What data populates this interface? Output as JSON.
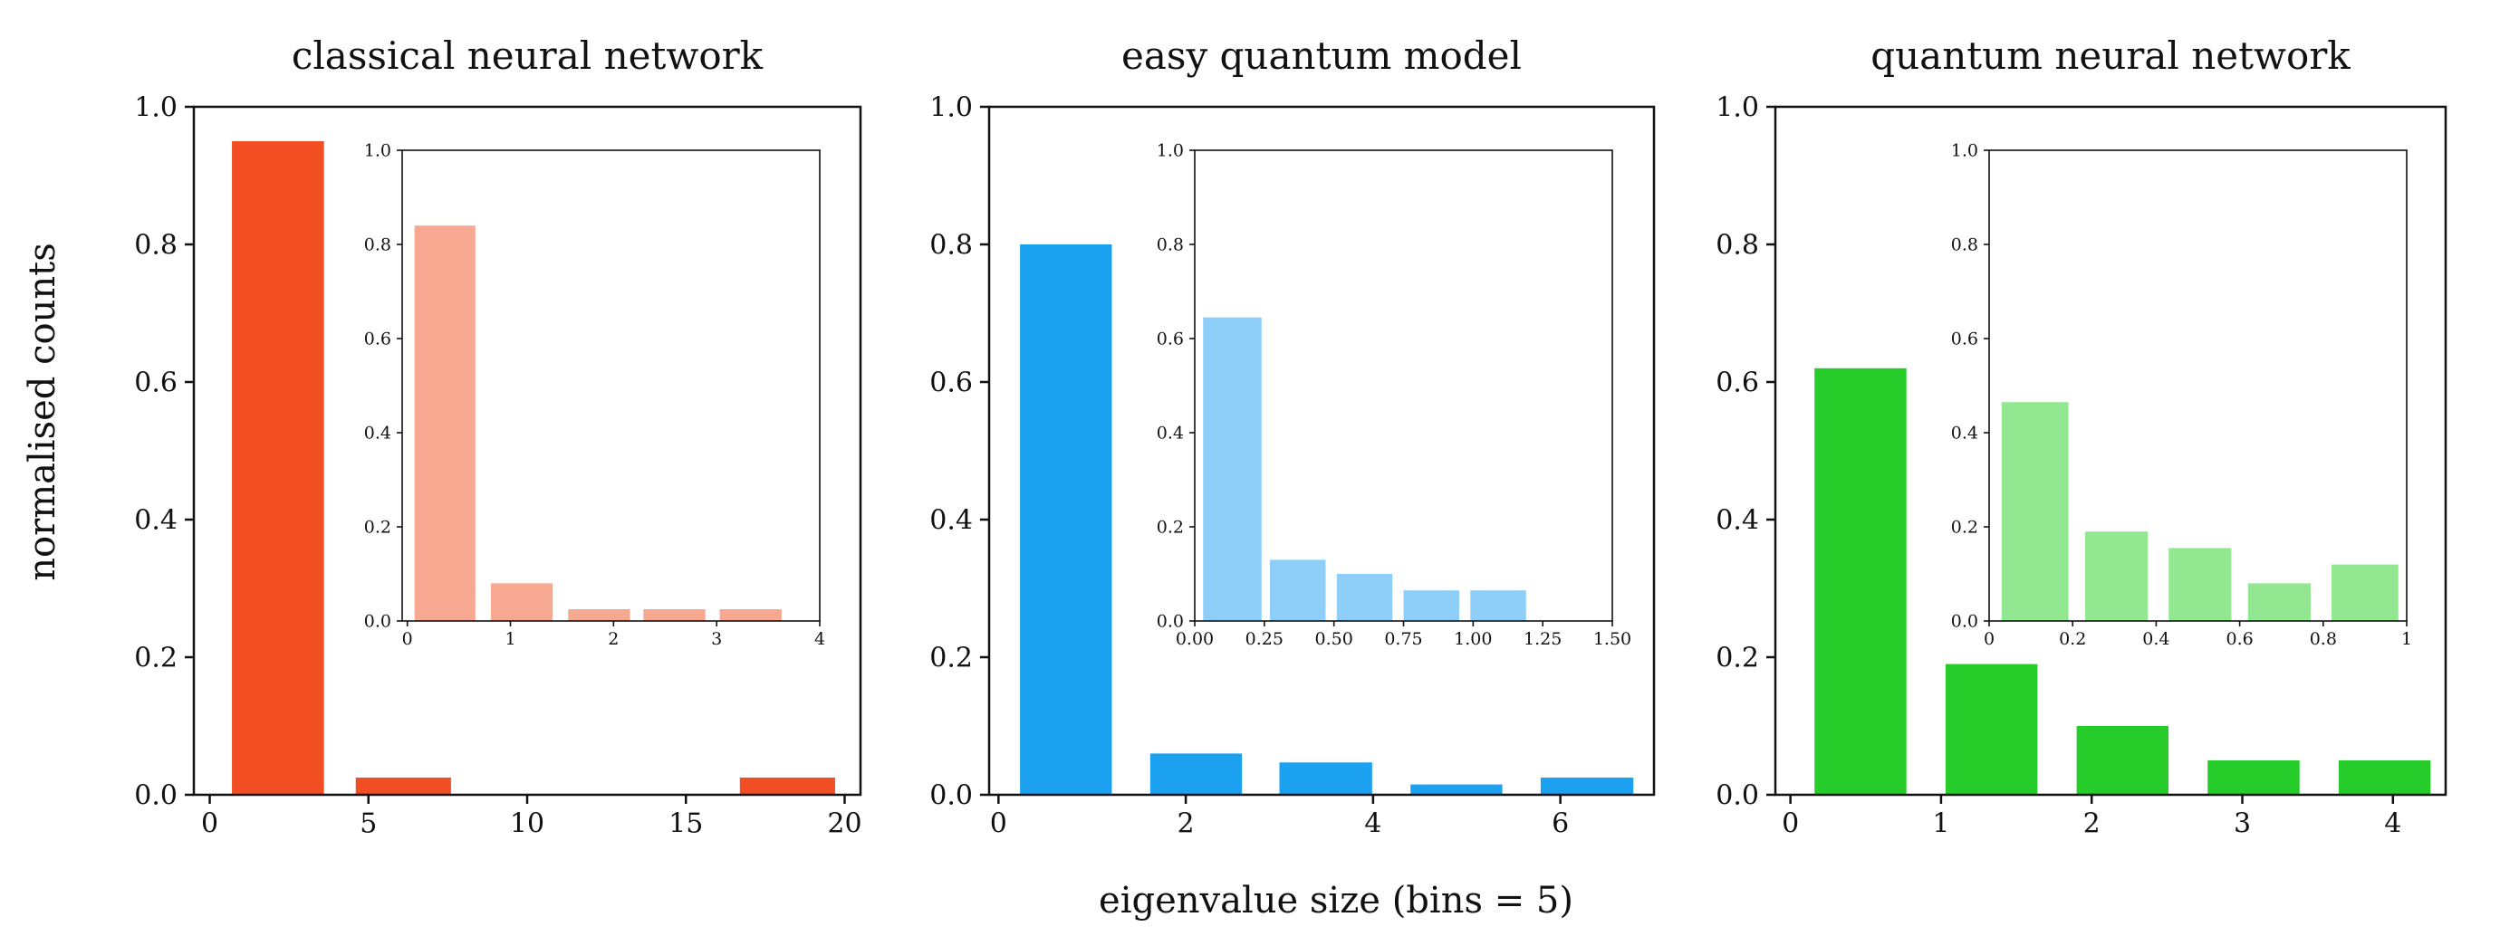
{
  "figure": {
    "ylabel": "normalised counts",
    "xlabel": "eigenvalue size (bins = 5)"
  },
  "chart_data": [
    {
      "type": "bar",
      "title": "classical neural network",
      "color": "#f24e24",
      "xlim": [
        -0.5,
        20.5
      ],
      "ylim": [
        0,
        1.0
      ],
      "xticks": [
        0,
        5,
        10,
        15,
        20
      ],
      "yticks": [
        0.0,
        0.2,
        0.4,
        0.6,
        0.8,
        1.0
      ],
      "bars": [
        {
          "x": [
            0.7,
            3.6
          ],
          "value": 0.95
        },
        {
          "x": [
            4.6,
            7.6
          ],
          "value": 0.025
        },
        {
          "x": [
            16.7,
            19.7
          ],
          "value": 0.025
        }
      ],
      "inset": {
        "color": "#f7a891",
        "xlim": [
          -0.05,
          4.0
        ],
        "ylim": [
          0,
          1.0
        ],
        "xticks": [
          0,
          1,
          2,
          3,
          4
        ],
        "yticks": [
          0.0,
          0.2,
          0.4,
          0.6,
          0.8,
          1.0
        ],
        "bars": [
          {
            "x": [
              0.07,
              0.66
            ],
            "value": 0.84
          },
          {
            "x": [
              0.81,
              1.41
            ],
            "value": 0.08
          },
          {
            "x": [
              1.56,
              2.16
            ],
            "value": 0.025
          },
          {
            "x": [
              2.29,
              2.89
            ],
            "value": 0.025
          },
          {
            "x": [
              3.03,
              3.63
            ],
            "value": 0.025
          }
        ]
      }
    },
    {
      "type": "bar",
      "title": "easy quantum model",
      "color": "#1ba1ef",
      "xlim": [
        -0.1,
        7.0
      ],
      "ylim": [
        0,
        1.0
      ],
      "xticks": [
        0,
        2,
        4,
        6
      ],
      "yticks": [
        0.0,
        0.2,
        0.4,
        0.6,
        0.8,
        1.0
      ],
      "bars": [
        {
          "x": [
            0.23,
            1.21
          ],
          "value": 0.8
        },
        {
          "x": [
            1.62,
            2.6
          ],
          "value": 0.06
        },
        {
          "x": [
            3.0,
            3.99
          ],
          "value": 0.047
        },
        {
          "x": [
            4.4,
            5.38
          ],
          "value": 0.015
        },
        {
          "x": [
            5.79,
            6.78
          ],
          "value": 0.025
        }
      ],
      "inset": {
        "color": "#8ecff9",
        "xlim": [
          0.0,
          1.5
        ],
        "ylim": [
          0,
          1.0
        ],
        "xticks": [
          0.0,
          0.25,
          0.5,
          0.75,
          1.0,
          1.25,
          1.5
        ],
        "xtick_labels": [
          "0.00",
          "0.25",
          "0.50",
          "0.75",
          "1.00",
          "1.25",
          "1.50"
        ],
        "yticks": [
          0.0,
          0.2,
          0.4,
          0.6,
          0.8,
          1.0
        ],
        "bars": [
          {
            "x": [
              0.03,
              0.24
            ],
            "value": 0.645
          },
          {
            "x": [
              0.27,
              0.47
            ],
            "value": 0.13
          },
          {
            "x": [
              0.51,
              0.71
            ],
            "value": 0.1
          },
          {
            "x": [
              0.75,
              0.95
            ],
            "value": 0.065
          },
          {
            "x": [
              0.99,
              1.19
            ],
            "value": 0.065
          }
        ]
      }
    },
    {
      "type": "bar",
      "title": "quantum neural network",
      "color": "#26cc2a",
      "xlim": [
        -0.1,
        4.35
      ],
      "ylim": [
        0,
        1.0
      ],
      "xticks": [
        0,
        1,
        2,
        3,
        4
      ],
      "yticks": [
        0.0,
        0.2,
        0.4,
        0.6,
        0.8,
        1.0
      ],
      "bars": [
        {
          "x": [
            0.16,
            0.77
          ],
          "value": 0.62
        },
        {
          "x": [
            1.03,
            1.64
          ],
          "value": 0.19
        },
        {
          "x": [
            1.9,
            2.51
          ],
          "value": 0.1
        },
        {
          "x": [
            2.77,
            3.38
          ],
          "value": 0.05
        },
        {
          "x": [
            3.64,
            4.25
          ],
          "value": 0.05
        }
      ],
      "inset": {
        "color": "#92e891",
        "xlim": [
          0.0,
          1.0
        ],
        "ylim": [
          0,
          1.0
        ],
        "xticks": [
          0.0,
          0.2,
          0.4,
          0.6,
          0.8,
          1.0
        ],
        "yticks": [
          0.0,
          0.2,
          0.4,
          0.6,
          0.8,
          1.0
        ],
        "bars": [
          {
            "x": [
              0.03,
              0.19
            ],
            "value": 0.465
          },
          {
            "x": [
              0.23,
              0.38
            ],
            "value": 0.19
          },
          {
            "x": [
              0.43,
              0.58
            ],
            "value": 0.155
          },
          {
            "x": [
              0.62,
              0.77
            ],
            "value": 0.08
          },
          {
            "x": [
              0.82,
              0.98
            ],
            "value": 0.12
          }
        ]
      }
    }
  ]
}
